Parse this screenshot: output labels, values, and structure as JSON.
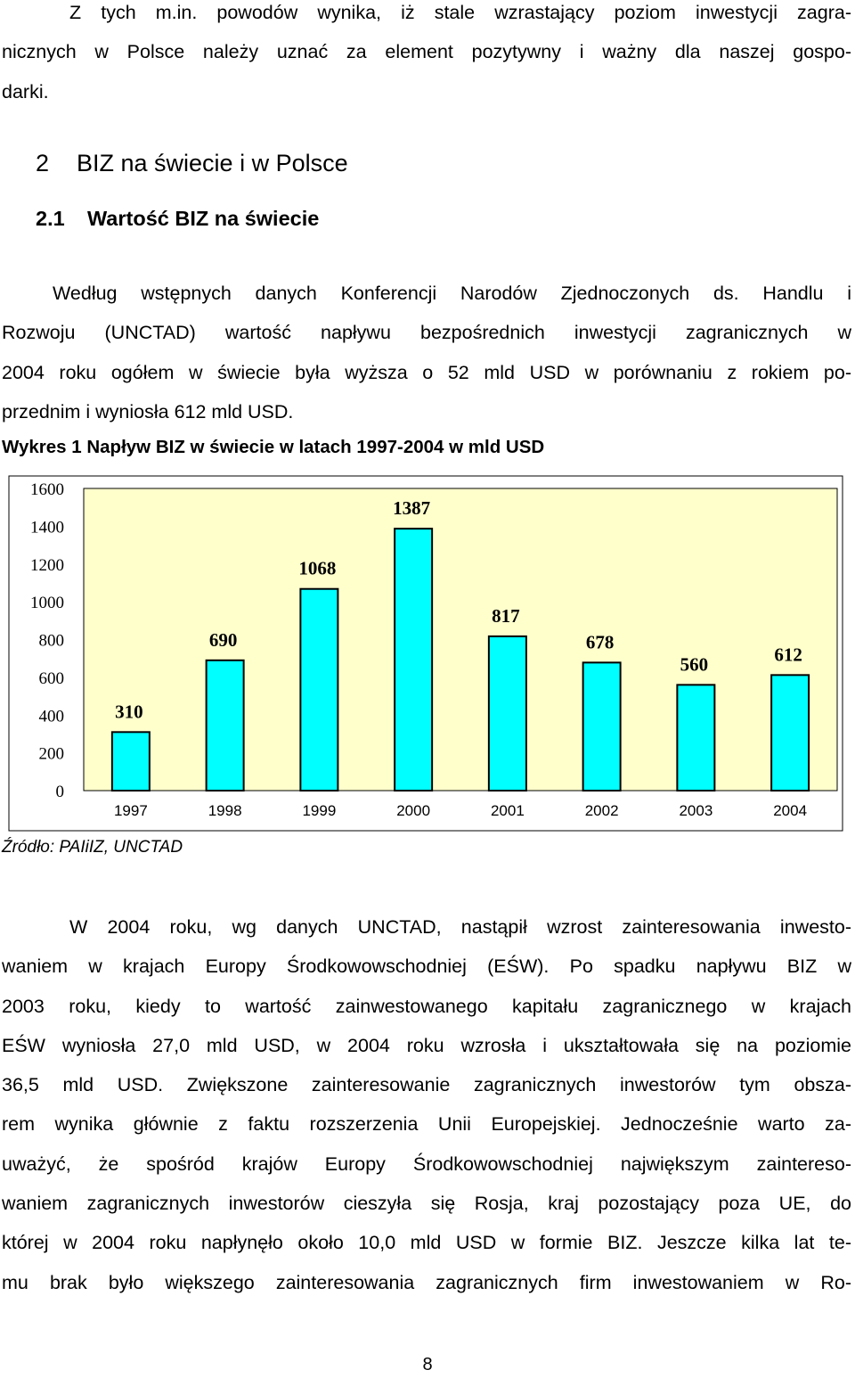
{
  "intro_lines": [
    "Z tych m.in. powodów wynika, iż stale wzrastający poziom inwestycji zagra-",
    "nicznych w Polsce należy uznać za element pozytywny i ważny dla naszej gospo-",
    "darki."
  ],
  "heading1": {
    "number": "2",
    "text": "BIZ na świecie i w Polsce"
  },
  "heading2": {
    "number": "2.1",
    "text": "Wartość BIZ na świecie"
  },
  "para1_lines": [
    "Według wstępnych danych Konferencji Narodów Zjednoczonych ds. Handlu i",
    "Rozwoju (UNCTAD) wartość napływu bezpośrednich inwestycji zagranicznych w",
    "2004 roku ogółem w świecie była wyższa o 52 mld USD w porównaniu z rokiem po-",
    "przednim i wyniosła 612 mld USD."
  ],
  "figure_caption": "Wykres 1 Napływ BIZ w świecie w latach 1997-2004 w mld USD",
  "chart_data": {
    "type": "bar",
    "title": "Wykres 1 Napływ BIZ w świecie w latach 1997-2004 w mld USD",
    "categories": [
      "1997",
      "1998",
      "1999",
      "2000",
      "2001",
      "2002",
      "2003",
      "2004"
    ],
    "values": [
      310,
      690,
      1068,
      1387,
      817,
      678,
      560,
      612
    ],
    "data_labels": [
      "310",
      "690",
      "1068",
      "1387",
      "817",
      "678",
      "560",
      "612"
    ],
    "yticks": [
      "0",
      "200",
      "400",
      "600",
      "800",
      "1000",
      "1200",
      "1400",
      "1600"
    ],
    "ylim": [
      0,
      1600
    ],
    "grid": false,
    "legend": "none",
    "colors": {
      "bar": "#00ffff",
      "plot_bg": "#ffffcc",
      "border": "#000000"
    }
  },
  "source": "Źródło: PAIiIZ, UNCTAD",
  "para2_lines": [
    "W 2004 roku, wg danych UNCTAD, nastąpił wzrost zainteresowania inwesto-",
    "waniem w krajach Europy Środkowowschodniej (EŚW). Po spadku napływu BIZ w",
    "2003 roku, kiedy to wartość zainwestowanego kapitału zagranicznego w krajach",
    "EŚW wyniosła 27,0 mld USD, w 2004 roku wzrosła i ukształtowała się na poziomie",
    "36,5 mld USD. Zwiększone zainteresowanie zagranicznych inwestorów tym obsza-",
    "rem wynika głównie z faktu rozszerzenia Unii Europejskiej. Jednocześnie warto za-",
    "uważyć, że spośród krajów Europy Środkowowschodniej największym zaintereso-",
    "waniem zagranicznych inwestorów cieszyła się Rosja, kraj pozostający poza UE, do",
    "której w 2004 roku napłynęło około 10,0 mld USD w formie BIZ. Jeszcze kilka lat te-",
    "mu brak było większego zainteresowania zagranicznych firm inwestowaniem w Ro-"
  ],
  "page_number": "8"
}
